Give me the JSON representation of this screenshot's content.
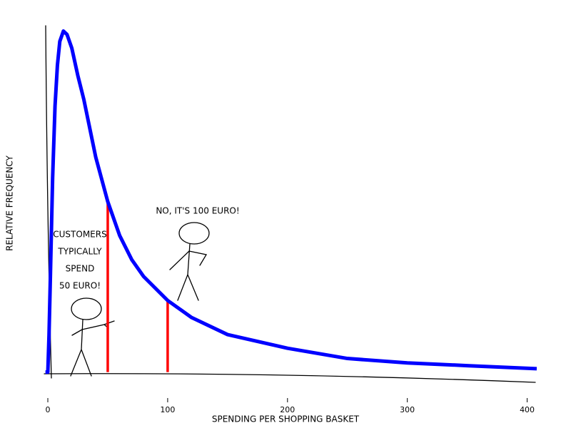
{
  "chart_data": {
    "type": "line",
    "xlabel": "SPENDING PER SHOPPING BASKET",
    "ylabel": "RELATIVE FREQUENCY",
    "x": [
      -2,
      0,
      1,
      2,
      4,
      6,
      8,
      10,
      13,
      16,
      20,
      25,
      30,
      40,
      50,
      60,
      70,
      80,
      100,
      120,
      150,
      200,
      250,
      300,
      350,
      408
    ],
    "series": [
      {
        "color": "#0000ff",
        "values": [
          0,
          0,
          0.11,
          0.26,
          0.57,
          0.78,
          0.9,
          0.97,
          1.0,
          0.99,
          0.95,
          0.87,
          0.8,
          0.63,
          0.5,
          0.4,
          0.33,
          0.28,
          0.21,
          0.16,
          0.11,
          0.07,
          0.04,
          0.027,
          0.019,
          0.01
        ]
      }
    ],
    "vlines": [
      {
        "x": 50,
        "y": 0.5,
        "color": "#ff0000"
      },
      {
        "x": 100,
        "y": 0.21,
        "color": "#ff0000"
      }
    ],
    "annotations": [
      {
        "lines": [
          "CUSTOMERS",
          "TYPICALLY",
          "SPEND",
          "50 EURO!"
        ]
      },
      {
        "lines": [
          "NO, IT'S 100 EURO!"
        ]
      }
    ],
    "xlim": [
      -4,
      408
    ],
    "ylim": [
      -0.03,
      1.02
    ],
    "xticks": [
      0,
      100,
      200,
      300,
      400
    ]
  }
}
